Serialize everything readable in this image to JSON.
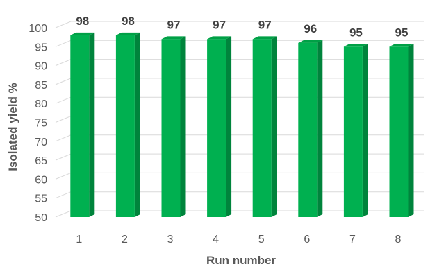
{
  "chart_data": {
    "type": "bar",
    "categories": [
      "1",
      "2",
      "3",
      "4",
      "5",
      "6",
      "7",
      "8"
    ],
    "values": [
      98,
      98,
      97,
      97,
      97,
      96,
      95,
      95
    ],
    "data_labels": [
      "98",
      "98",
      "97",
      "97",
      "97",
      "96",
      "95",
      "95"
    ],
    "xlabel": "Run number",
    "ylabel": "Isolated yield %",
    "ylim": [
      50,
      100
    ],
    "yticks": [
      "50",
      "55",
      "60",
      "65",
      "70",
      "75",
      "80",
      "85",
      "90",
      "95",
      "100"
    ],
    "grid": "horizontal, 3-D back wall",
    "legend": "none",
    "style": "3-D column",
    "colors": {
      "bar_front": "#00B050",
      "bar_side": "#00843C",
      "bar_top": "#00A046",
      "grid": "#D9D9D9",
      "text": "#595959",
      "data_label": "#404040"
    }
  }
}
